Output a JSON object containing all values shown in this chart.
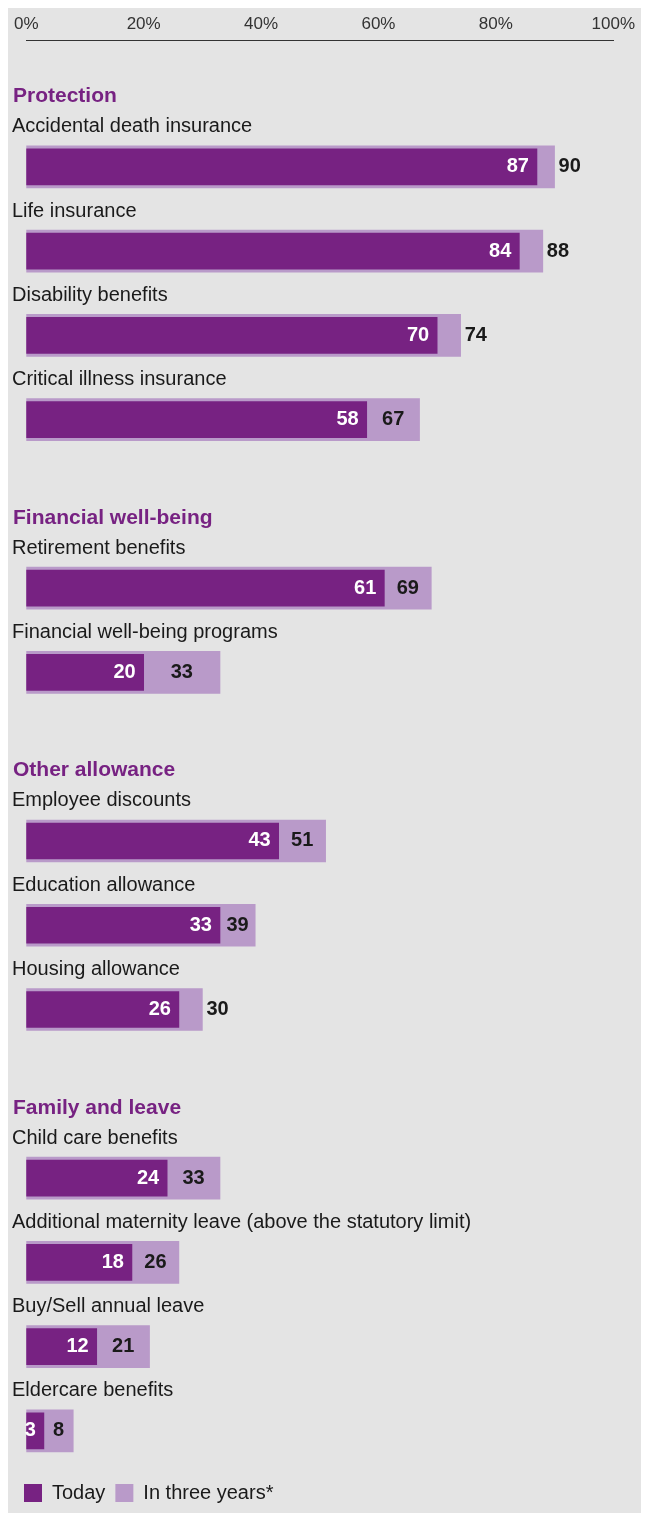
{
  "chart_data": {
    "type": "bar",
    "orientation": "horizontal",
    "categories": [
      "Protection",
      "Accidental death insurance",
      "Life insurance",
      "Disability benefits",
      "Critical illness insurance",
      "Financial well-being",
      "Retirement benefits",
      "Financial well-being programs",
      "Other allowance",
      "Employee discounts",
      "Education allowance",
      "Housing allowance",
      "Family and leave",
      "Child care benefits",
      "Additional maternity leave (above the statutory limit)",
      "Buy/Sell annual leave",
      "Eldercare benefits"
    ],
    "series": [
      {
        "name": "Today",
        "color": "#772282",
        "values": [
          null,
          87,
          84,
          70,
          58,
          null,
          61,
          20,
          null,
          43,
          33,
          26,
          null,
          24,
          18,
          12,
          3
        ]
      },
      {
        "name": "In three years*",
        "color": "#b99ac9",
        "values": [
          null,
          90,
          88,
          74,
          67,
          null,
          69,
          33,
          null,
          51,
          39,
          30,
          null,
          33,
          26,
          21,
          8
        ]
      }
    ],
    "xlim": [
      0,
      100
    ],
    "xticks": [
      {
        "value": 0,
        "label": "0%"
      },
      {
        "value": 20,
        "label": "20%"
      },
      {
        "value": 40,
        "label": "40%"
      },
      {
        "value": 60,
        "label": "60%"
      },
      {
        "value": 80,
        "label": "80%"
      },
      {
        "value": 100,
        "label": "100%"
      }
    ],
    "grid": false,
    "legend": "bottom left",
    "data_labels": true
  }
}
